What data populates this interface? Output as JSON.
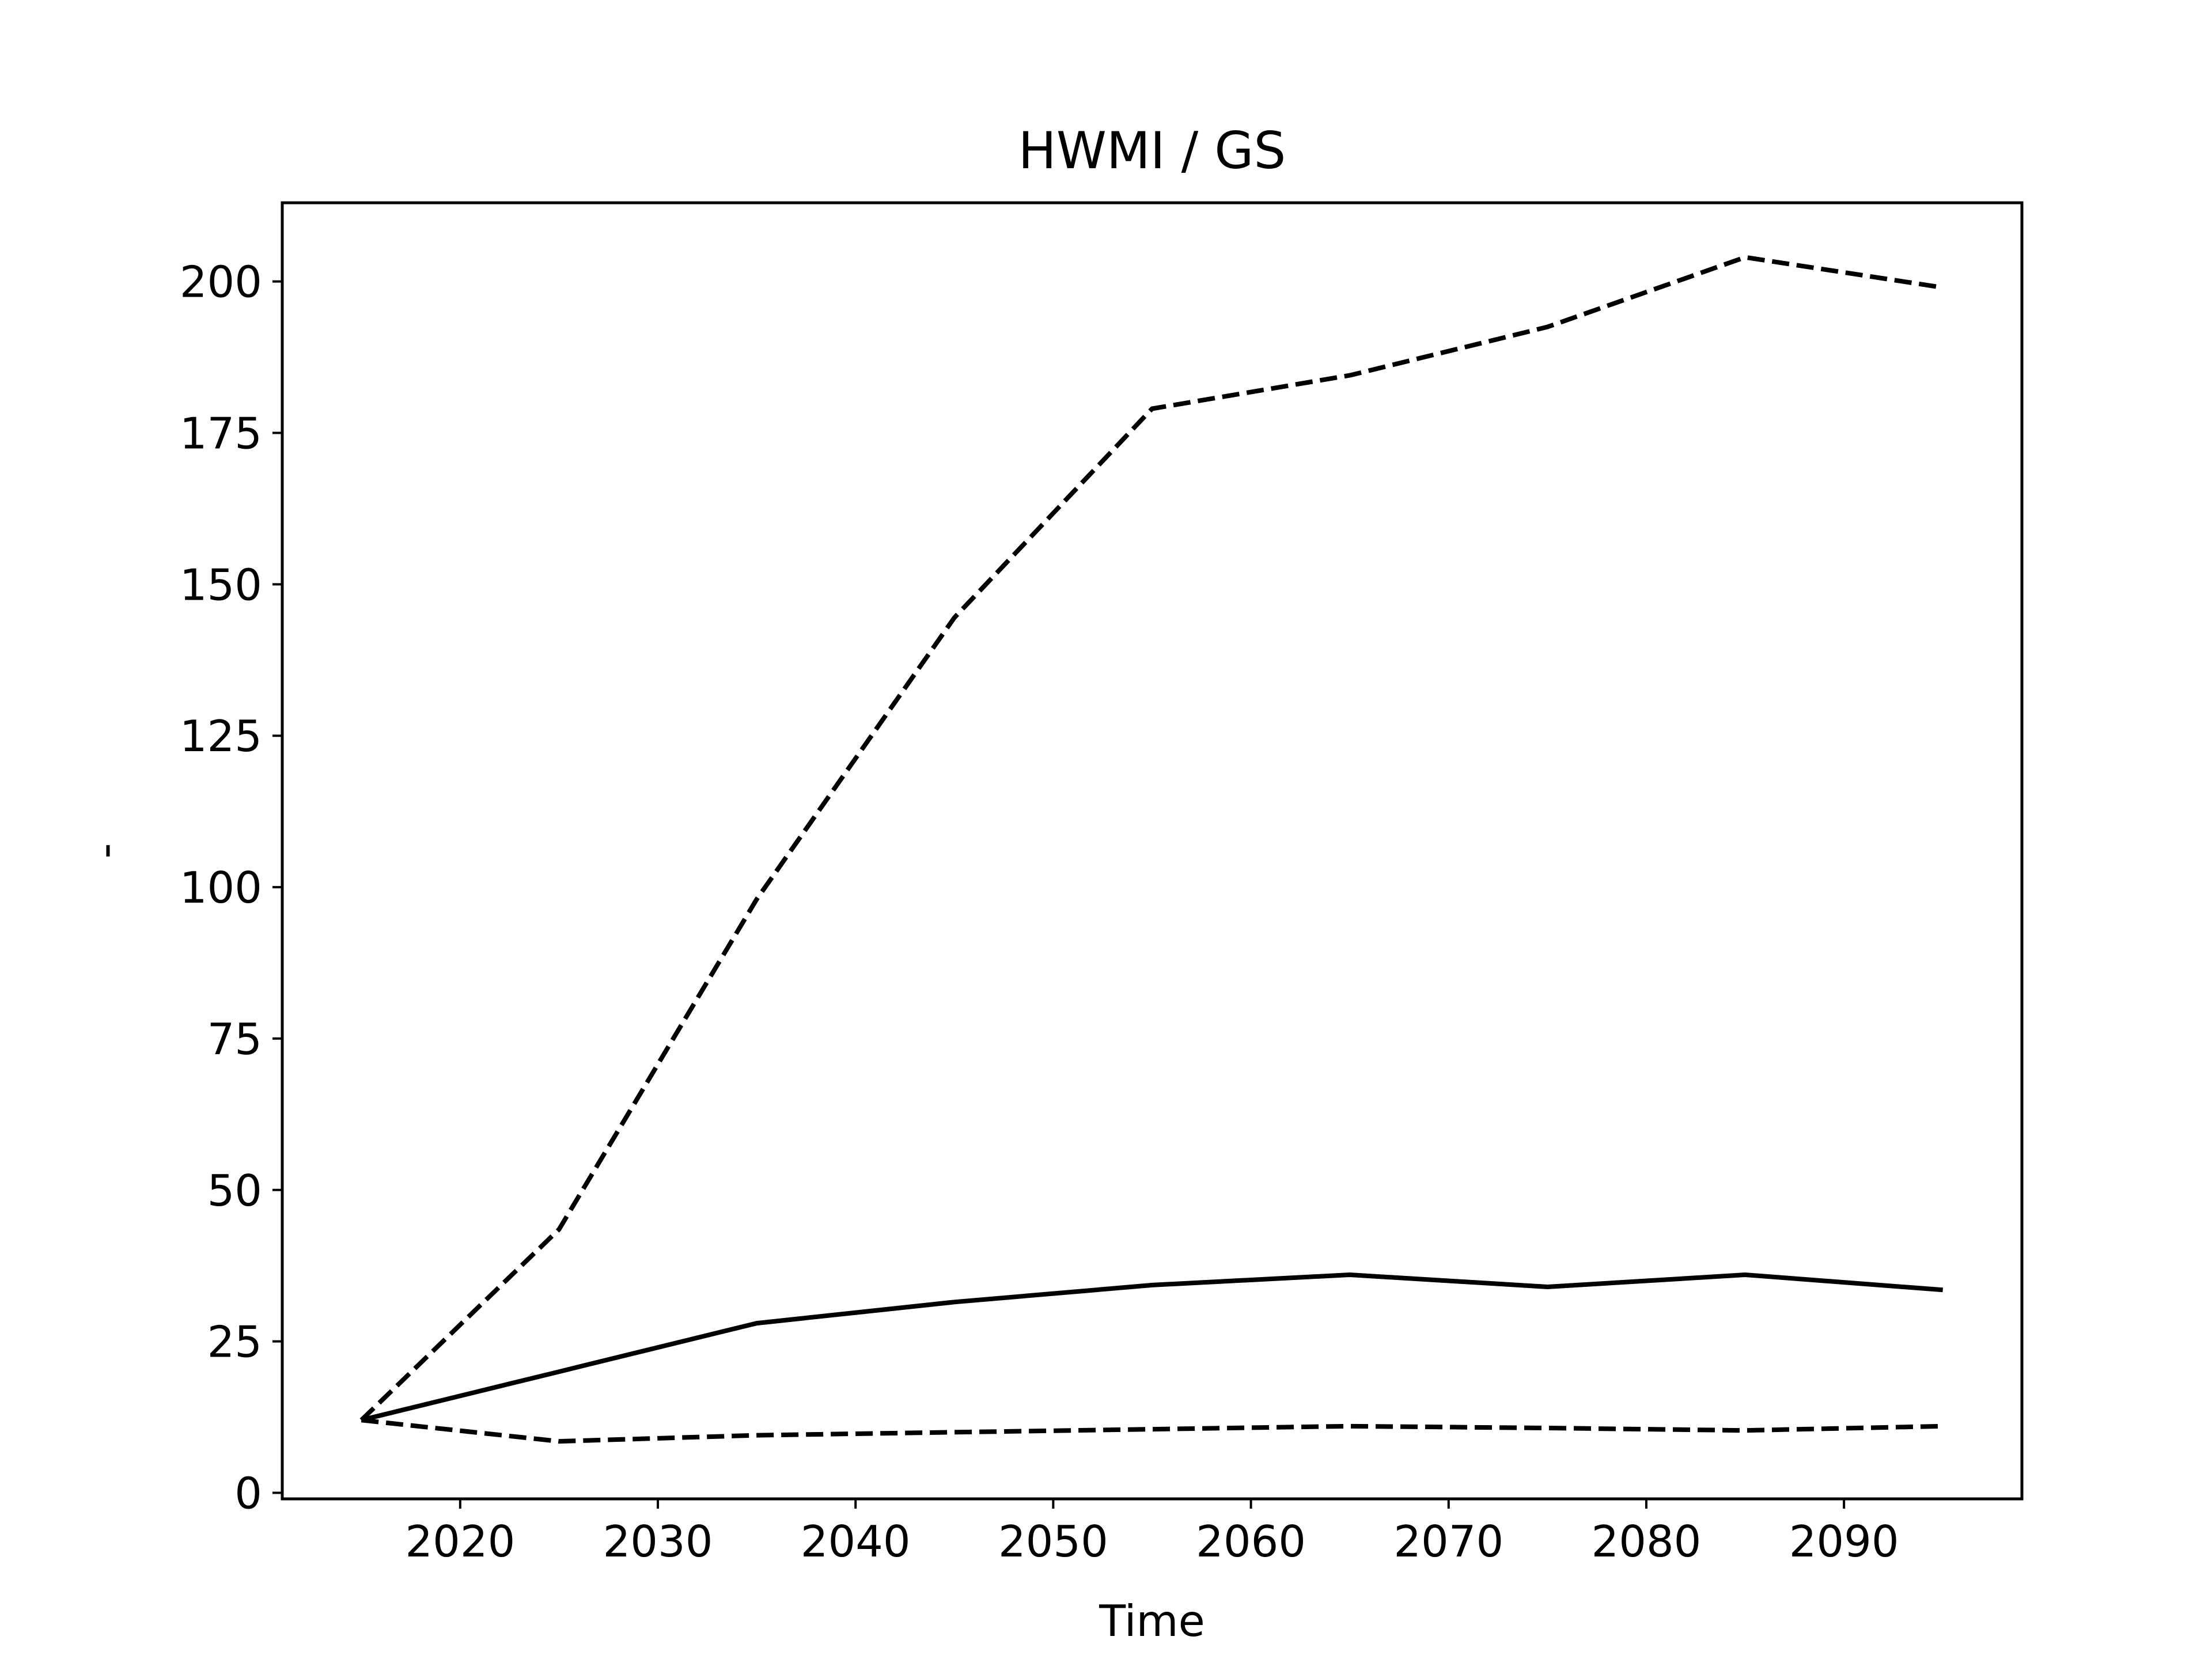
{
  "chart_data": {
    "type": "line",
    "title": "HWMI / GS",
    "xlabel": "Time",
    "ylabel": "-",
    "xlim": [
      2011,
      2099
    ],
    "ylim": [
      -1,
      213
    ],
    "xticks": [
      2020,
      2030,
      2040,
      2050,
      2060,
      2070,
      2080,
      2090
    ],
    "yticks": [
      0,
      25,
      50,
      75,
      100,
      125,
      150,
      175,
      200
    ],
    "grid": false,
    "legend": "none",
    "x": [
      2015,
      2025,
      2035,
      2045,
      2055,
      2065,
      2075,
      2085,
      2095
    ],
    "series": [
      {
        "style": "dashed",
        "color": "#000000",
        "values": [
          12.0,
          43.5,
          98.0,
          144.5,
          179.0,
          184.5,
          192.5,
          204.0,
          199.0
        ]
      },
      {
        "style": "solid",
        "color": "#000000",
        "values": [
          12.0,
          20.0,
          28.0,
          31.5,
          34.3,
          36.0,
          34.0,
          36.0,
          33.5
        ]
      },
      {
        "style": "dashed",
        "color": "#000000",
        "values": [
          12.0,
          8.5,
          9.5,
          10.0,
          10.5,
          11.0,
          10.7,
          10.3,
          11.0
        ]
      }
    ]
  }
}
